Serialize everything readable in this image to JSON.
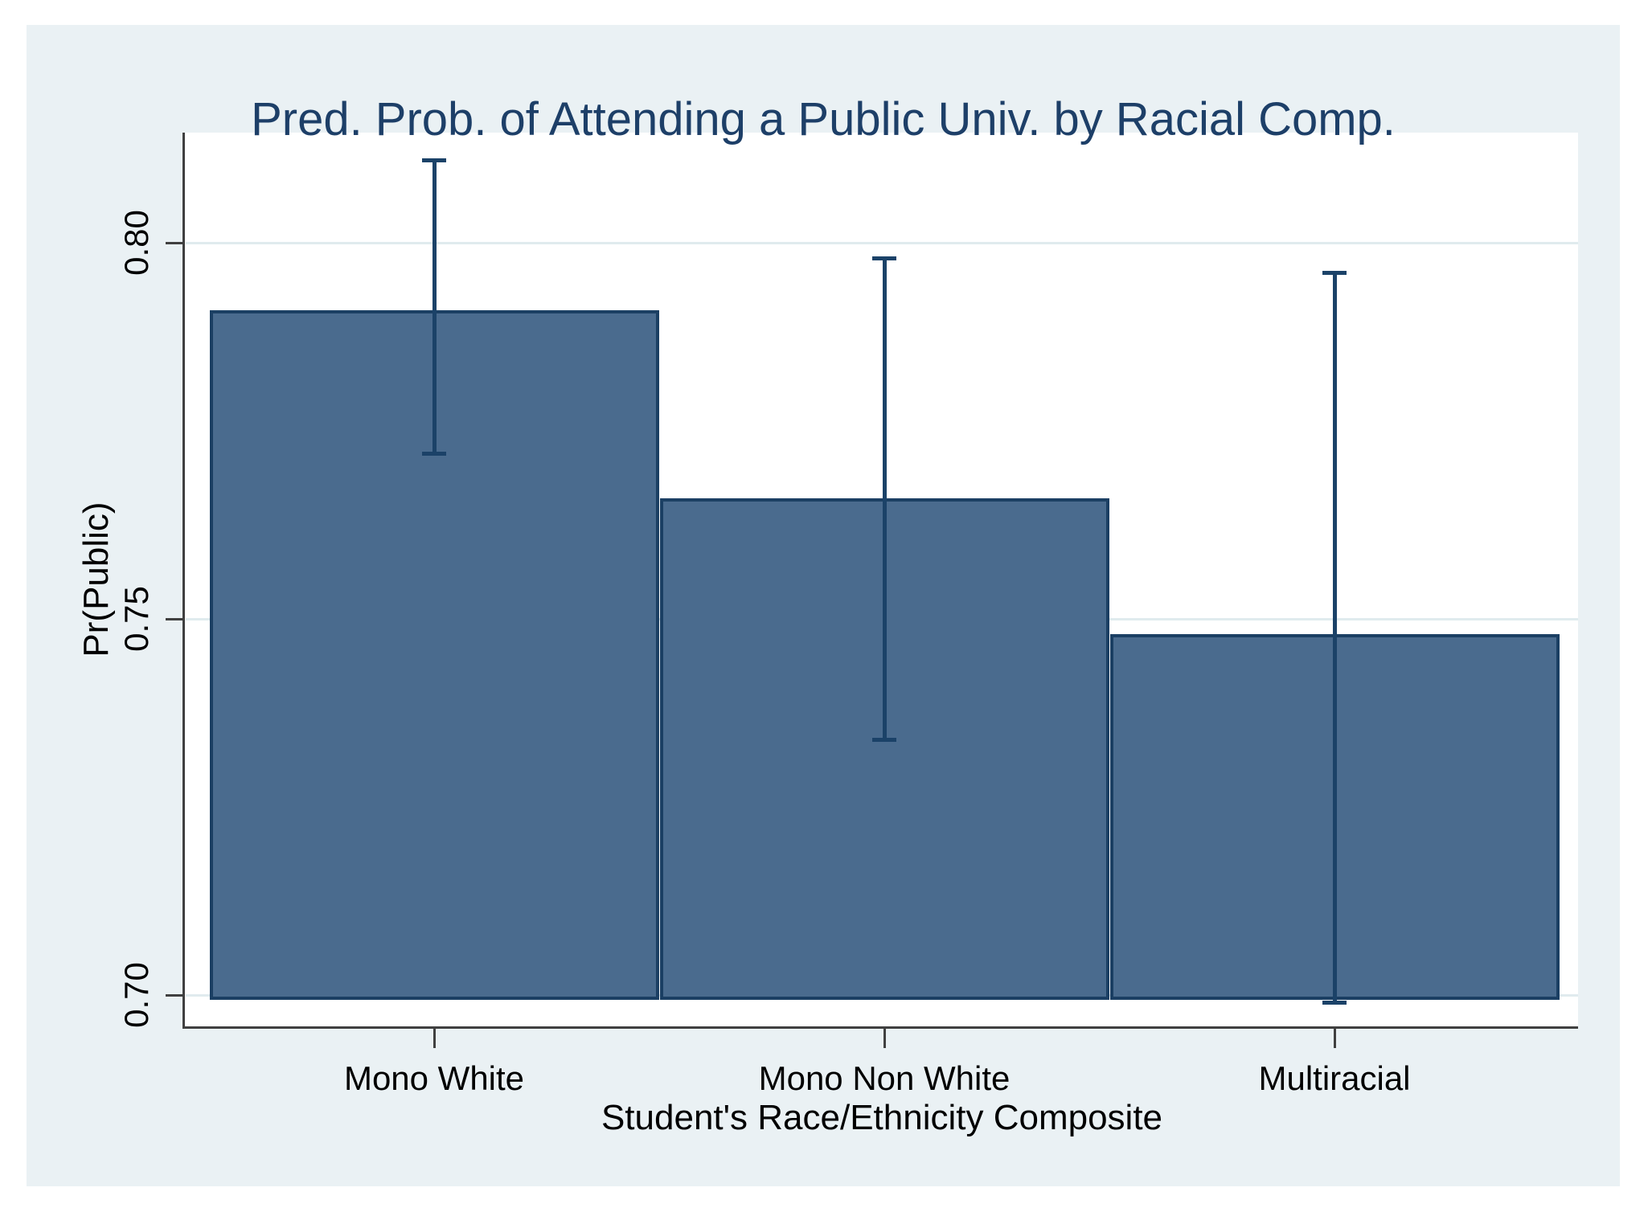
{
  "chart_data": {
    "type": "bar",
    "title": "Pred. Prob. of Attending a Public Univ. by Racial Comp.",
    "xlabel": "Student's Race/Ethnicity Composite",
    "ylabel": "Pr(Public)",
    "categories": [
      "Mono White",
      "Mono Non White",
      "Multiracial"
    ],
    "values": [
      0.791,
      0.766,
      0.748
    ],
    "error_bars": [
      {
        "low": 0.772,
        "high": 0.811
      },
      {
        "low": 0.734,
        "high": 0.798
      },
      {
        "low": 0.699,
        "high": 0.796
      }
    ],
    "yticks": [
      {
        "value": 0.7,
        "label": "0.70"
      },
      {
        "value": 0.75,
        "label": "0.75"
      },
      {
        "value": 0.8,
        "label": "0.80"
      }
    ],
    "ylim": [
      0.696,
      0.815
    ],
    "baseline": 0.7,
    "grid": true,
    "legend": false,
    "colors": {
      "canvas_background": "#eaf1f4",
      "plot_background": "#ffffff",
      "bar_fill": "#4a6b8e",
      "bar_border": "#1b3f63",
      "error_bar": "#1b4268",
      "gridline": "#e0ebee",
      "axis_line": "#404040",
      "title_text": "#1d3f68",
      "label_text": "#000000"
    }
  }
}
